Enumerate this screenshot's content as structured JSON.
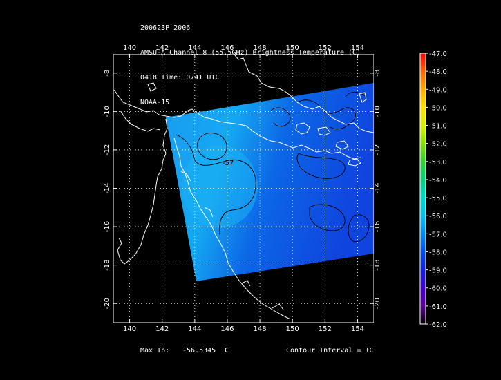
{
  "header": {
    "line1": "200623P 2006",
    "line2": "AMSU-A Channel 8 (55.5GHz) Brightness Temperature (C)",
    "line3": "0418 Time: 0741 UTC",
    "line4": "NOAA-15"
  },
  "map": {
    "lon_ticks": [
      "140",
      "142",
      "144",
      "146",
      "148",
      "150",
      "152",
      "154"
    ],
    "lat_ticks": [
      "-8",
      "-10",
      "-12",
      "-14",
      "-16",
      "-18",
      "-20"
    ],
    "lon_range": [
      139,
      155
    ],
    "lat_range": [
      -7,
      -21
    ],
    "contour_label": "-57",
    "coastline_color": "#ffffff",
    "swath_colors": [
      "#1aa6f0",
      "#0b6ee8",
      "#1046e0"
    ]
  },
  "colorbar": {
    "labels": [
      "-47.0",
      "-48.0",
      "-49.0",
      "-50.0",
      "-51.0",
      "-52.0",
      "-53.0",
      "-54.0",
      "-55.0",
      "-56.0",
      "-57.0",
      "-58.0",
      "-59.0",
      "-60.0",
      "-61.0",
      "-62.0"
    ],
    "colors": [
      "#ff0000",
      "#ff6a00",
      "#ffb000",
      "#ffe000",
      "#d8f000",
      "#88e000",
      "#30d030",
      "#00d080",
      "#00d8c8",
      "#00c0f0",
      "#0088f0",
      "#0050e8",
      "#1020e0",
      "#4800d0",
      "#6000a0",
      "#000000"
    ]
  },
  "footer": {
    "max_label": "Max Tb:",
    "max_value": "-56.5345",
    "max_unit": "C",
    "contour_interval": "Contour Interval = 1C"
  }
}
